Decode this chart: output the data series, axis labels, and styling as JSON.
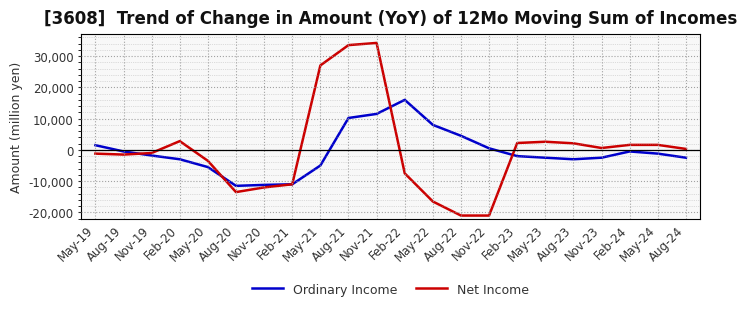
{
  "title": "[3608]  Trend of Change in Amount (YoY) of 12Mo Moving Sum of Incomes",
  "ylabel": "Amount (million yen)",
  "x_labels": [
    "May-19",
    "Aug-19",
    "Nov-19",
    "Feb-20",
    "May-20",
    "Aug-20",
    "Nov-20",
    "Feb-21",
    "May-21",
    "Aug-21",
    "Nov-21",
    "Feb-22",
    "May-22",
    "Aug-22",
    "Nov-22",
    "Feb-23",
    "May-23",
    "Aug-23",
    "Nov-23",
    "Feb-24",
    "May-24",
    "Aug-24"
  ],
  "ordinary_income": [
    1500,
    -500,
    -1800,
    -3000,
    -5500,
    -11500,
    -11200,
    -11000,
    -5000,
    10200,
    11500,
    16000,
    8000,
    4500,
    500,
    -2000,
    -2500,
    -3000,
    -2500,
    -500,
    -1200,
    -2500
  ],
  "net_income": [
    -1200,
    -1500,
    -1000,
    2800,
    -3500,
    -13500,
    -12000,
    -11000,
    27000,
    33500,
    34200,
    -7500,
    -16500,
    -21000,
    -21000,
    2200,
    2600,
    2100,
    600,
    1600,
    1600,
    300
  ],
  "ordinary_color": "#0000cc",
  "net_color": "#cc0000",
  "ylim": [
    -22000,
    37000
  ],
  "yticks": [
    -20000,
    -10000,
    0,
    10000,
    20000,
    30000
  ],
  "background_color": "#ffffff",
  "plot_bg_color": "#f8f8f8",
  "grid_color": "#999999",
  "title_fontsize": 12,
  "axis_fontsize": 9,
  "tick_fontsize": 8.5,
  "legend_labels": [
    "Ordinary Income",
    "Net Income"
  ],
  "line_width": 1.8
}
